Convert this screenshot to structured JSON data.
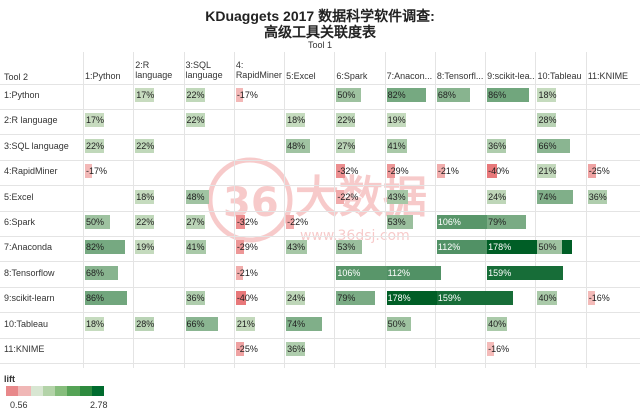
{
  "title_line1": "KDuaggets 2017 数据科学软件调查:",
  "title_line2": "高级工具关联度表",
  "col_axis_title": "Tool 1",
  "row_axis_title": "Tool 2",
  "watermark_text": "36大数据",
  "watermark_url": "www.36dsj.com",
  "legend": {
    "title": "lift",
    "min": "0.56",
    "max": "2.78"
  },
  "colors": {
    "negative": "#e8888a",
    "low": "#c8dcc0",
    "high": "#006b2e"
  },
  "chart_data": {
    "type": "heatmap",
    "metric": "lift",
    "columns": [
      "1:Python",
      "2:R\nlanguage",
      "3:SQL\nlanguage",
      "4:\nRapidMiner",
      "5:Excel",
      "6:Spark",
      "7:Anacon...",
      "8:Tensorfl...",
      "9:scikit-lea...",
      "10:Tableau",
      "11:KNIME"
    ],
    "rows": [
      "1:Python",
      "2:R language",
      "3:SQL language",
      "4:RapidMiner",
      "5:Excel",
      "6:Spark",
      "7:Anaconda",
      "8:Tensorflow",
      "9:scikit-learn",
      "10:Tableau",
      "11:KNIME"
    ],
    "cells": [
      {
        "row": 0,
        "col": 1,
        "value": 17,
        "label": "17%"
      },
      {
        "row": 0,
        "col": 2,
        "value": 22,
        "label": "22%"
      },
      {
        "row": 0,
        "col": 3,
        "value": -17,
        "label": "-17%"
      },
      {
        "row": 0,
        "col": 5,
        "value": 50,
        "label": "50%"
      },
      {
        "row": 0,
        "col": 6,
        "value": 82,
        "label": "82%"
      },
      {
        "row": 0,
        "col": 7,
        "value": 68,
        "label": "68%"
      },
      {
        "row": 0,
        "col": 8,
        "value": 86,
        "label": "86%"
      },
      {
        "row": 0,
        "col": 9,
        "value": 18,
        "label": "18%"
      },
      {
        "row": 1,
        "col": 0,
        "value": 17,
        "label": "17%"
      },
      {
        "row": 1,
        "col": 2,
        "value": 22,
        "label": "22%"
      },
      {
        "row": 1,
        "col": 4,
        "value": 18,
        "label": "18%"
      },
      {
        "row": 1,
        "col": 5,
        "value": 22,
        "label": "22%"
      },
      {
        "row": 1,
        "col": 6,
        "value": 19,
        "label": "19%"
      },
      {
        "row": 1,
        "col": 9,
        "value": 28,
        "label": "28%"
      },
      {
        "row": 2,
        "col": 0,
        "value": 22,
        "label": "22%"
      },
      {
        "row": 2,
        "col": 1,
        "value": 22,
        "label": "22%"
      },
      {
        "row": 2,
        "col": 4,
        "value": 48,
        "label": "48%"
      },
      {
        "row": 2,
        "col": 5,
        "value": 27,
        "label": "27%"
      },
      {
        "row": 2,
        "col": 6,
        "value": 41,
        "label": "41%"
      },
      {
        "row": 2,
        "col": 8,
        "value": 36,
        "label": "36%"
      },
      {
        "row": 2,
        "col": 9,
        "value": 66,
        "label": "66%"
      },
      {
        "row": 3,
        "col": 0,
        "value": -17,
        "label": "-17%"
      },
      {
        "row": 3,
        "col": 5,
        "value": -32,
        "label": "-32%"
      },
      {
        "row": 3,
        "col": 6,
        "value": -29,
        "label": "-29%"
      },
      {
        "row": 3,
        "col": 7,
        "value": -21,
        "label": "-21%"
      },
      {
        "row": 3,
        "col": 8,
        "value": -40,
        "label": "-40%"
      },
      {
        "row": 3,
        "col": 9,
        "value": 21,
        "label": "21%"
      },
      {
        "row": 3,
        "col": 10,
        "value": -25,
        "label": "-25%"
      },
      {
        "row": 4,
        "col": 1,
        "value": 18,
        "label": "18%"
      },
      {
        "row": 4,
        "col": 2,
        "value": 48,
        "label": "48%"
      },
      {
        "row": 4,
        "col": 5,
        "value": -22,
        "label": "-22%"
      },
      {
        "row": 4,
        "col": 6,
        "value": 43,
        "label": "43%"
      },
      {
        "row": 4,
        "col": 8,
        "value": 24,
        "label": "24%"
      },
      {
        "row": 4,
        "col": 9,
        "value": 74,
        "label": "74%"
      },
      {
        "row": 4,
        "col": 10,
        "value": 36,
        "label": "36%"
      },
      {
        "row": 5,
        "col": 0,
        "value": 50,
        "label": "50%"
      },
      {
        "row": 5,
        "col": 1,
        "value": 22,
        "label": "22%"
      },
      {
        "row": 5,
        "col": 2,
        "value": 27,
        "label": "27%"
      },
      {
        "row": 5,
        "col": 3,
        "value": -32,
        "label": "-32%"
      },
      {
        "row": 5,
        "col": 4,
        "value": -22,
        "label": "-22%"
      },
      {
        "row": 5,
        "col": 6,
        "value": 53,
        "label": "53%"
      },
      {
        "row": 5,
        "col": 7,
        "value": 106,
        "label": "106%"
      },
      {
        "row": 5,
        "col": 8,
        "value": 79,
        "label": "79%"
      },
      {
        "row": 6,
        "col": 0,
        "value": 82,
        "label": "82%"
      },
      {
        "row": 6,
        "col": 1,
        "value": 19,
        "label": "19%"
      },
      {
        "row": 6,
        "col": 2,
        "value": 41,
        "label": "41%"
      },
      {
        "row": 6,
        "col": 3,
        "value": -29,
        "label": "-29%"
      },
      {
        "row": 6,
        "col": 4,
        "value": 43,
        "label": "43%"
      },
      {
        "row": 6,
        "col": 5,
        "value": 53,
        "label": "53%"
      },
      {
        "row": 6,
        "col": 7,
        "value": 112,
        "label": "112%"
      },
      {
        "row": 6,
        "col": 8,
        "value": 178,
        "label": "178%"
      },
      {
        "row": 6,
        "col": 9,
        "value": 50,
        "label": "50%"
      },
      {
        "row": 7,
        "col": 0,
        "value": 68,
        "label": "68%"
      },
      {
        "row": 7,
        "col": 3,
        "value": -21,
        "label": "-21%"
      },
      {
        "row": 7,
        "col": 5,
        "value": 106,
        "label": "106%"
      },
      {
        "row": 7,
        "col": 6,
        "value": 112,
        "label": "112%"
      },
      {
        "row": 7,
        "col": 8,
        "value": 159,
        "label": "159%"
      },
      {
        "row": 8,
        "col": 0,
        "value": 86,
        "label": "86%"
      },
      {
        "row": 8,
        "col": 2,
        "value": 36,
        "label": "36%"
      },
      {
        "row": 8,
        "col": 3,
        "value": -40,
        "label": "-40%"
      },
      {
        "row": 8,
        "col": 4,
        "value": 24,
        "label": "24%"
      },
      {
        "row": 8,
        "col": 5,
        "value": 79,
        "label": "79%"
      },
      {
        "row": 8,
        "col": 6,
        "value": 178,
        "label": "178%"
      },
      {
        "row": 8,
        "col": 7,
        "value": 159,
        "label": "159%"
      },
      {
        "row": 8,
        "col": 9,
        "value": 40,
        "label": "40%"
      },
      {
        "row": 8,
        "col": 10,
        "value": -16,
        "label": "-16%"
      },
      {
        "row": 9,
        "col": 0,
        "value": 18,
        "label": "18%"
      },
      {
        "row": 9,
        "col": 1,
        "value": 28,
        "label": "28%"
      },
      {
        "row": 9,
        "col": 2,
        "value": 66,
        "label": "66%"
      },
      {
        "row": 9,
        "col": 3,
        "value": 21,
        "label": "21%"
      },
      {
        "row": 9,
        "col": 4,
        "value": 74,
        "label": "74%"
      },
      {
        "row": 9,
        "col": 6,
        "value": 50,
        "label": "50%"
      },
      {
        "row": 9,
        "col": 8,
        "value": 40,
        "label": "40%"
      },
      {
        "row": 10,
        "col": 3,
        "value": -25,
        "label": "-25%"
      },
      {
        "row": 10,
        "col": 4,
        "value": 36,
        "label": "36%"
      },
      {
        "row": 10,
        "col": 8,
        "value": -16,
        "label": "-16%"
      }
    ]
  }
}
